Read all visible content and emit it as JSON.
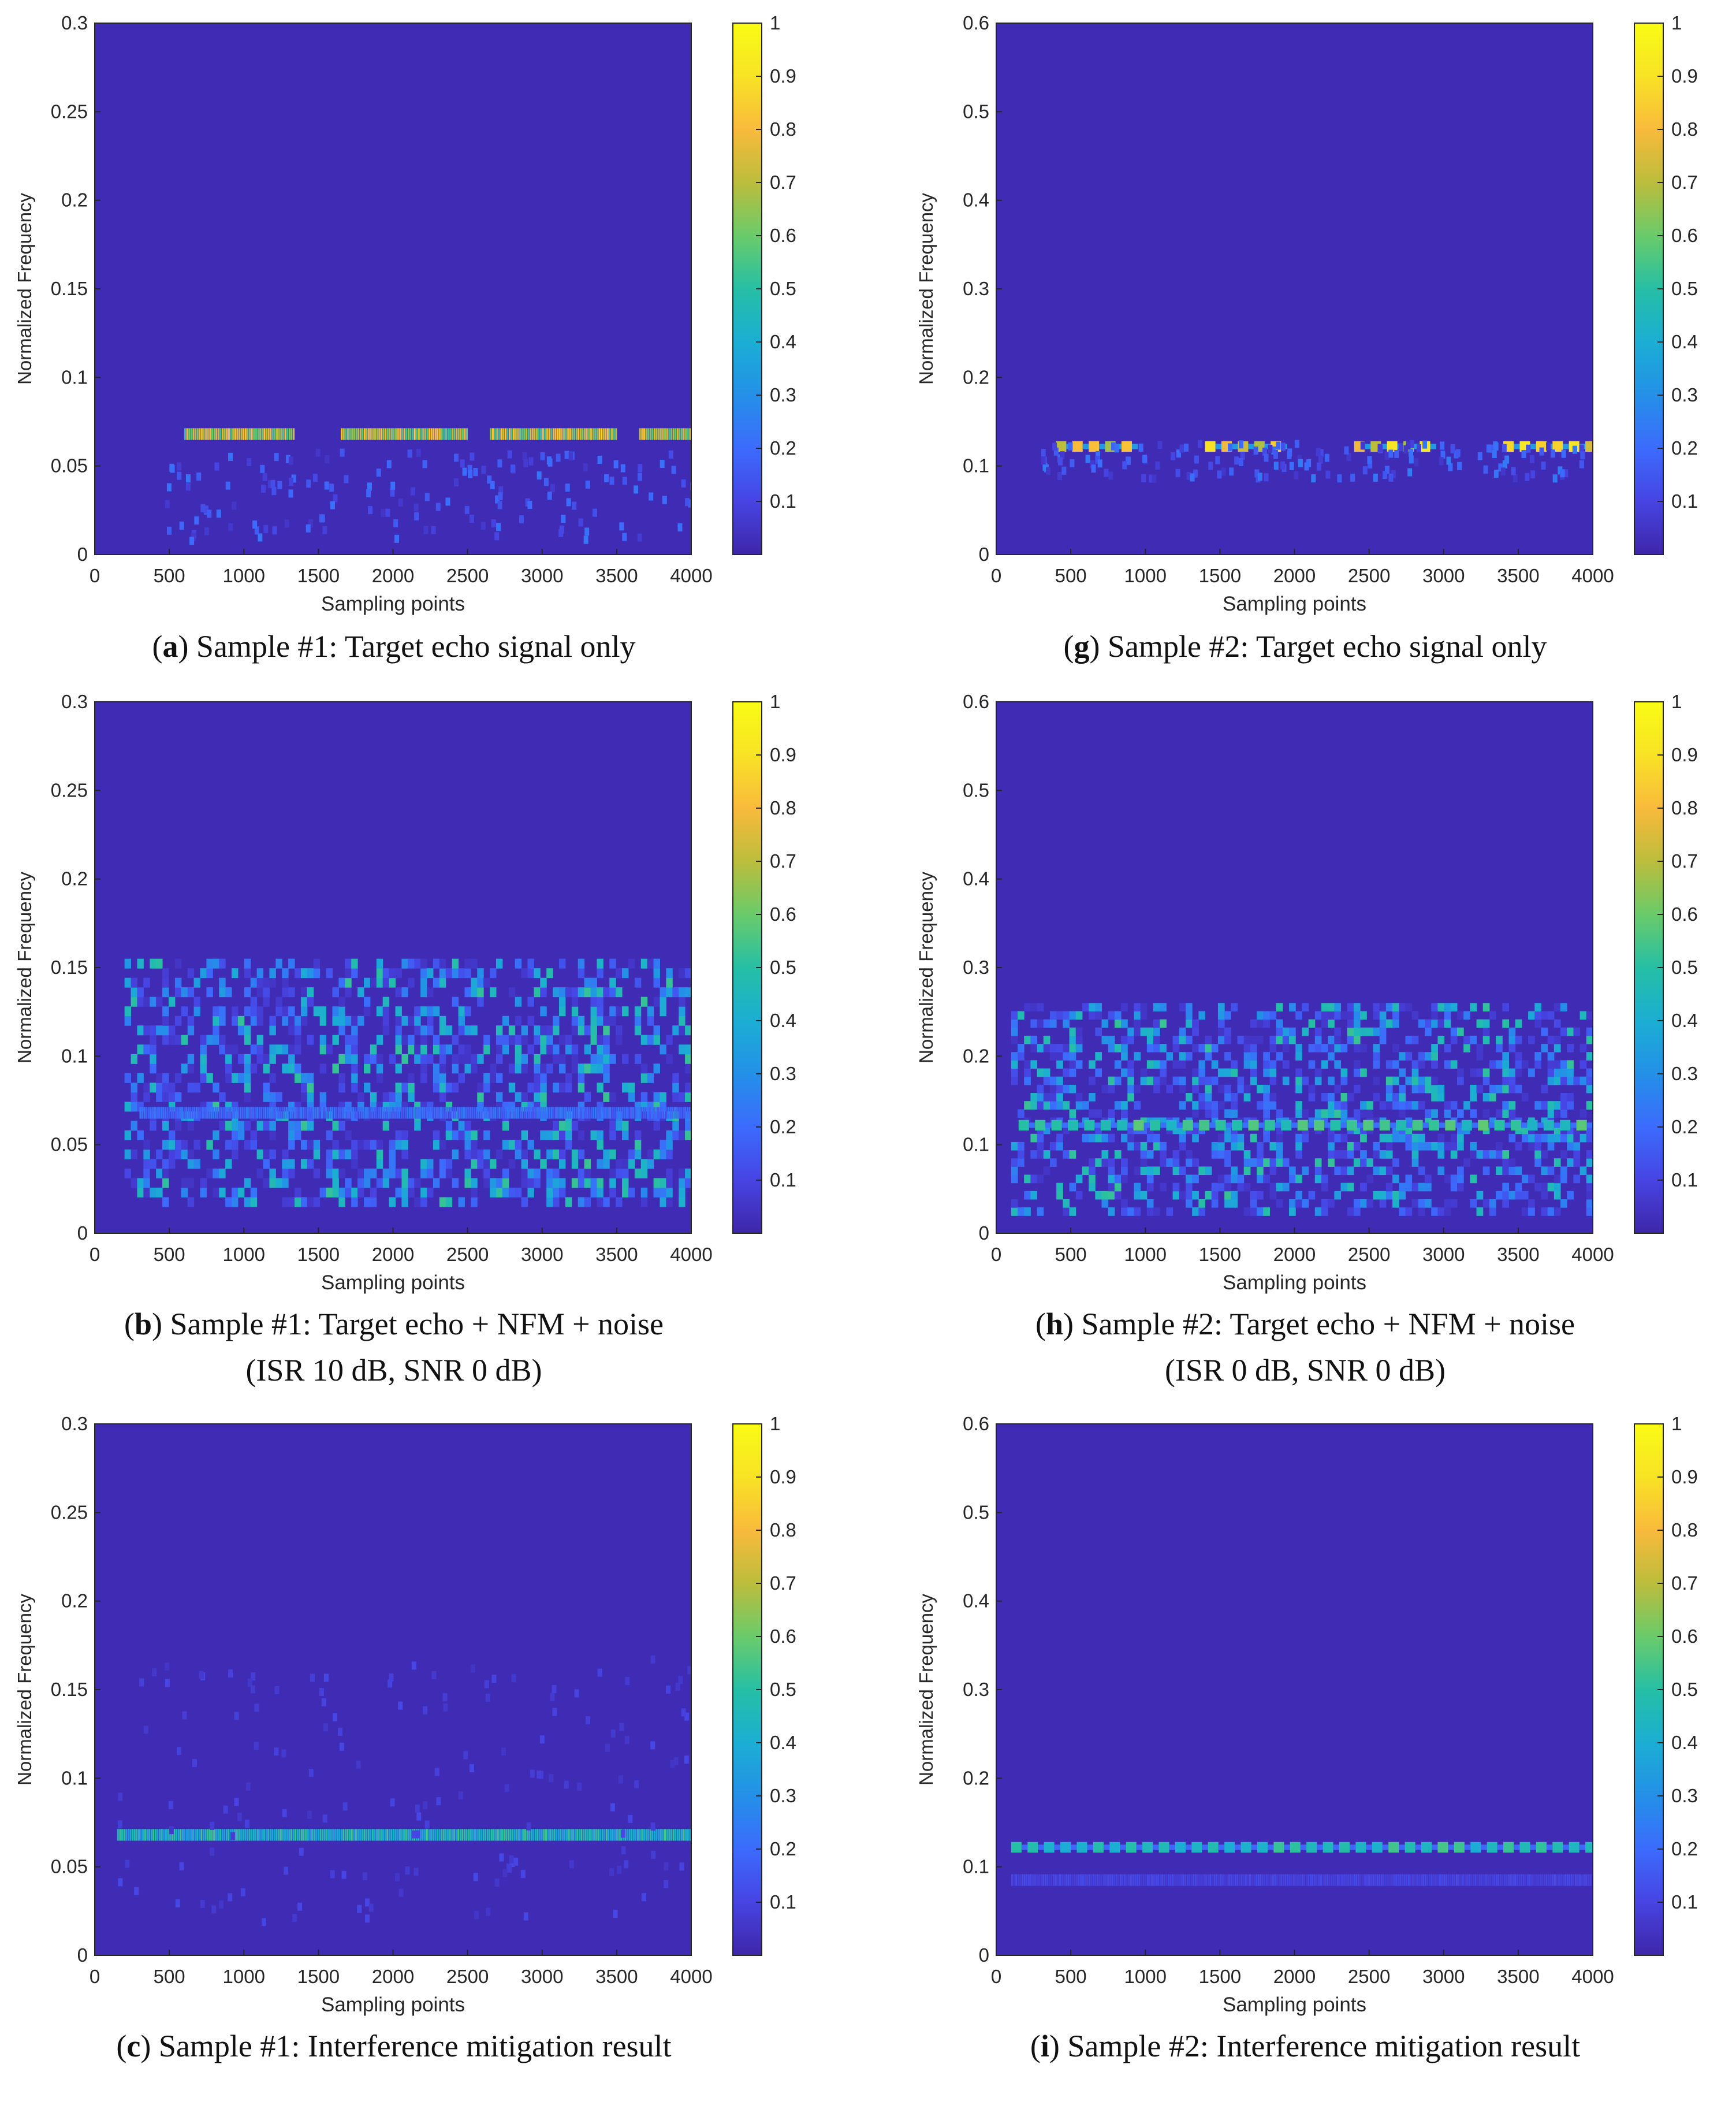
{
  "colors": {
    "background": "#ffffff",
    "colormap": [
      "#3e26a8",
      "#4744e3",
      "#3c6bfd",
      "#2490e8",
      "#1baed3",
      "#26bfa5",
      "#6acb6a",
      "#bcbd3c",
      "#f9ba3c",
      "#f8e325",
      "#f9fb15"
    ],
    "axis_text": "#262626",
    "frame": "#262626"
  },
  "chart_data": [
    {
      "id": "a",
      "type": "heatmap",
      "caption_letter": "a",
      "caption": [
        ") Sample #1: Target echo signal only"
      ],
      "xlabel": "Sampling points",
      "ylabel": "Normalized Frequency",
      "xlim": [
        0,
        4000
      ],
      "ylim": [
        0,
        0.3
      ],
      "xticks": [
        "0",
        "500",
        "1000",
        "1500",
        "2000",
        "2500",
        "3000",
        "3500",
        "4000"
      ],
      "yticks": [
        "0",
        "0.05",
        "0.1",
        "0.15",
        "0.2",
        "0.25",
        "0.3"
      ],
      "colorbar_ticks": [
        "0.1",
        "0.2",
        "0.3",
        "0.4",
        "0.5",
        "0.6",
        "0.7",
        "0.8",
        "0.9",
        "1"
      ],
      "clim": [
        0,
        1
      ],
      "features": [
        {
          "kind": "band",
          "x": [
            600,
            1330
          ],
          "y": 0.068,
          "value": 0.85
        },
        {
          "kind": "band",
          "x": [
            1650,
            2500
          ],
          "y": 0.068,
          "value": 0.85
        },
        {
          "kind": "band",
          "x": [
            2650,
            3500
          ],
          "y": 0.068,
          "value": 0.85
        },
        {
          "kind": "band",
          "x": [
            3650,
            4000
          ],
          "y": 0.068,
          "value": 0.85
        },
        {
          "kind": "scatter",
          "x": [
            450,
            4000
          ],
          "y": [
            0.01,
            0.06
          ],
          "value": 0.18
        }
      ]
    },
    {
      "id": "g",
      "type": "heatmap",
      "caption_letter": "g",
      "caption": [
        ") Sample #2: Target echo signal only"
      ],
      "xlabel": "Sampling points",
      "ylabel": "Normalized Frequency",
      "xlim": [
        0,
        4000
      ],
      "ylim": [
        0,
        0.6
      ],
      "xticks": [
        "0",
        "500",
        "1000",
        "1500",
        "2000",
        "2500",
        "3000",
        "3500",
        "4000"
      ],
      "yticks": [
        "0",
        "0.1",
        "0.2",
        "0.3",
        "0.4",
        "0.5",
        "0.6"
      ],
      "colorbar_ticks": [
        "0.1",
        "0.2",
        "0.3",
        "0.4",
        "0.5",
        "0.6",
        "0.7",
        "0.8",
        "0.9",
        "1"
      ],
      "clim": [
        0,
        1
      ],
      "features": [
        {
          "kind": "dashes",
          "x": [
            400,
            900
          ],
          "y": 0.122,
          "value": 0.95
        },
        {
          "kind": "dashes",
          "x": [
            1400,
            1950
          ],
          "y": 0.122,
          "value": 0.95
        },
        {
          "kind": "dashes",
          "x": [
            2400,
            2950
          ],
          "y": 0.122,
          "value": 0.95
        },
        {
          "kind": "dashes",
          "x": [
            3400,
            4000
          ],
          "y": 0.122,
          "value": 0.95
        },
        {
          "kind": "scatter",
          "x": [
            300,
            4000
          ],
          "y": [
            0.09,
            0.13
          ],
          "value": 0.2
        }
      ]
    },
    {
      "id": "b",
      "type": "heatmap",
      "caption_letter": "b",
      "caption": [
        ") Sample #1: Target echo + NFM + noise",
        "(ISR 10 dB, SNR 0 dB)"
      ],
      "xlabel": "Sampling points",
      "ylabel": "Normalized Frequency",
      "xlim": [
        0,
        4000
      ],
      "ylim": [
        0,
        0.3
      ],
      "xticks": [
        "0",
        "500",
        "1000",
        "1500",
        "2000",
        "2500",
        "3000",
        "3500",
        "4000"
      ],
      "yticks": [
        "0",
        "0.05",
        "0.1",
        "0.15",
        "0.2",
        "0.25",
        "0.3"
      ],
      "colorbar_ticks": [
        "0.1",
        "0.2",
        "0.3",
        "0.4",
        "0.5",
        "0.6",
        "0.7",
        "0.8",
        "0.9",
        "1"
      ],
      "clim": [
        0,
        1
      ],
      "features": [
        {
          "kind": "noise",
          "x": [
            200,
            4000
          ],
          "y": [
            0.015,
            0.155
          ],
          "value": 0.3
        },
        {
          "kind": "band",
          "x": [
            300,
            4000
          ],
          "y": 0.068,
          "value": 0.25
        }
      ]
    },
    {
      "id": "h",
      "type": "heatmap",
      "caption_letter": "h",
      "caption": [
        ") Sample #2: Target echo + NFM + noise",
        "(ISR 0 dB, SNR 0 dB)"
      ],
      "xlabel": "Sampling points",
      "ylabel": "Normalized Frequency",
      "xlim": [
        0,
        4000
      ],
      "ylim": [
        0,
        0.6
      ],
      "xticks": [
        "0",
        "500",
        "1000",
        "1500",
        "2000",
        "2500",
        "3000",
        "3500",
        "4000"
      ],
      "yticks": [
        "0",
        "0.1",
        "0.2",
        "0.3",
        "0.4",
        "0.5",
        "0.6"
      ],
      "colorbar_ticks": [
        "0.1",
        "0.2",
        "0.3",
        "0.4",
        "0.5",
        "0.6",
        "0.7",
        "0.8",
        "0.9",
        "1"
      ],
      "clim": [
        0,
        1
      ],
      "features": [
        {
          "kind": "noise",
          "x": [
            100,
            4000
          ],
          "y": [
            0.02,
            0.26
          ],
          "value": 0.3
        },
        {
          "kind": "dashes",
          "x": [
            150,
            4000
          ],
          "y": 0.122,
          "value": 0.6
        }
      ]
    },
    {
      "id": "c",
      "type": "heatmap",
      "caption_letter": "c",
      "caption": [
        ") Sample #1: Interference mitigation result"
      ],
      "xlabel": "Sampling points",
      "ylabel": "Normalized Frequency",
      "xlim": [
        0,
        4000
      ],
      "ylim": [
        0,
        0.3
      ],
      "xticks": [
        "0",
        "500",
        "1000",
        "1500",
        "2000",
        "2500",
        "3000",
        "3500",
        "4000"
      ],
      "yticks": [
        "0",
        "0.05",
        "0.1",
        "0.15",
        "0.2",
        "0.25",
        "0.3"
      ],
      "colorbar_ticks": [
        "0.1",
        "0.2",
        "0.3",
        "0.4",
        "0.5",
        "0.6",
        "0.7",
        "0.8",
        "0.9",
        "1"
      ],
      "clim": [
        0,
        1
      ],
      "features": [
        {
          "kind": "band",
          "x": [
            150,
            4000
          ],
          "y": 0.068,
          "value": 0.55
        },
        {
          "kind": "scatter",
          "x": [
            150,
            4000
          ],
          "y": [
            0.02,
            0.17
          ],
          "value": 0.06
        }
      ]
    },
    {
      "id": "i",
      "type": "heatmap",
      "caption_letter": "i",
      "caption": [
        ") Sample #2: Interference mitigation result"
      ],
      "xlabel": "Sampling points",
      "ylabel": "Normalized Frequency",
      "xlim": [
        0,
        4000
      ],
      "ylim": [
        0,
        0.6
      ],
      "xticks": [
        "0",
        "500",
        "1000",
        "1500",
        "2000",
        "2500",
        "3000",
        "3500",
        "4000"
      ],
      "yticks": [
        "0",
        "0.1",
        "0.2",
        "0.3",
        "0.4",
        "0.5",
        "0.6"
      ],
      "colorbar_ticks": [
        "0.1",
        "0.2",
        "0.3",
        "0.4",
        "0.5",
        "0.6",
        "0.7",
        "0.8",
        "0.9",
        "1"
      ],
      "clim": [
        0,
        1
      ],
      "features": [
        {
          "kind": "dashes",
          "x": [
            100,
            4000
          ],
          "y": 0.122,
          "value": 0.55
        },
        {
          "kind": "band",
          "x": [
            100,
            4000
          ],
          "y": 0.085,
          "value": 0.12
        }
      ]
    }
  ]
}
